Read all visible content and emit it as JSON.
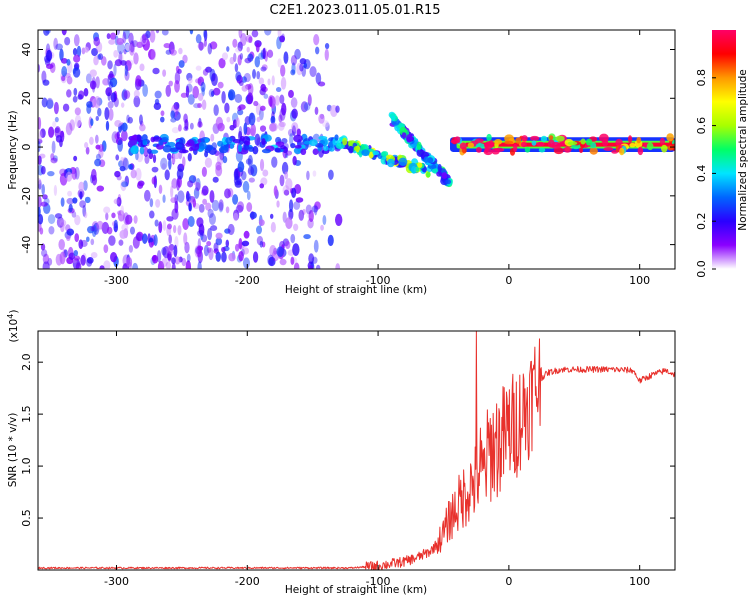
{
  "title": "C2E1.2023.011.05.01.R15",
  "colors": {
    "snr_line": "#e8312c",
    "colorbar": [
      "#ffffff",
      "#8a00ff",
      "#2a00ff",
      "#0066ff",
      "#00e5ff",
      "#00ff66",
      "#a8ff00",
      "#ffff00",
      "#ff9900",
      "#ff0000",
      "#ff0066"
    ]
  },
  "chart_data": [
    {
      "type": "heatmap",
      "xlabel": "Height of straight line (km)",
      "ylabel": "Frequency (Hz)",
      "xlim": [
        -360,
        127
      ],
      "ylim": [
        -50,
        48
      ],
      "xticks": [
        -300,
        -200,
        -100,
        0,
        100
      ],
      "xtick_labels": [
        "-300",
        "-200",
        "-100",
        "0",
        "100"
      ],
      "yticks": [
        -40,
        -20,
        0,
        20,
        40
      ],
      "ytick_labels": [
        "-40",
        "-20",
        "0",
        "20",
        "40"
      ],
      "colorbar": {
        "label": "Normalized spectral amplitude",
        "range": [
          0,
          1
        ],
        "ticks": [
          0,
          0.2,
          0.4,
          0.6,
          0.8
        ],
        "tick_labels": [
          "0.0",
          "0.2",
          "0.4",
          "0.6",
          "0.8"
        ]
      },
      "features": [
        {
          "x_range": [
            -360,
            -130
          ],
          "y_range": [
            -50,
            48
          ],
          "amplitude": 0.08
        },
        {
          "x_range": [
            -290,
            -130
          ],
          "y_center": 1,
          "amplitude": 0.3
        },
        {
          "x_range": [
            -130,
            -60
          ],
          "y_start": 2,
          "y_end": -10,
          "amplitude": 0.55
        },
        {
          "x_range": [
            -90,
            -45
          ],
          "y_start": 12,
          "y_end": -15,
          "amplitude": 0.4
        },
        {
          "x_range": [
            -45,
            127
          ],
          "y_center": 1,
          "amplitude": 0.95
        }
      ]
    },
    {
      "type": "line",
      "xlabel": "Height of straight line (km)",
      "ylabel": "SNR (10 * v/v)",
      "y_multiplier_label": "(x10",
      "y_multiplier_exp": "4",
      "y_multiplier_close": ")",
      "xlim": [
        -360,
        127
      ],
      "ylim": [
        0,
        2.3
      ],
      "xticks": [
        -300,
        -200,
        -100,
        0,
        100
      ],
      "xtick_labels": [
        "-300",
        "-200",
        "-100",
        "0",
        "100"
      ],
      "yticks": [
        0.5,
        1.0,
        1.5,
        2.0
      ],
      "ytick_labels": [
        "0.5",
        "1.0",
        "1.5",
        "2.0"
      ],
      "series": [
        {
          "x": [
            -360,
            -300,
            -250,
            -200,
            -150,
            -120,
            -100,
            -90,
            -80,
            -70,
            -60,
            -55,
            -50,
            -45,
            -40,
            -35,
            -30,
            -25,
            -22,
            -20,
            -15,
            -10,
            -5,
            0,
            5,
            10,
            15,
            20,
            25,
            30,
            40,
            60,
            80,
            95,
            100,
            110,
            120,
            127
          ],
          "y": [
            0.02,
            0.02,
            0.02,
            0.02,
            0.02,
            0.02,
            0.04,
            0.06,
            0.08,
            0.12,
            0.18,
            0.25,
            0.35,
            0.5,
            0.6,
            0.7,
            0.8,
            0.85,
            1.0,
            0.9,
            1.15,
            1.2,
            1.25,
            1.35,
            1.4,
            1.5,
            1.6,
            1.75,
            1.85,
            1.9,
            1.93,
            1.93,
            1.93,
            1.92,
            1.82,
            1.88,
            1.92,
            1.88
          ]
        }
      ]
    }
  ]
}
